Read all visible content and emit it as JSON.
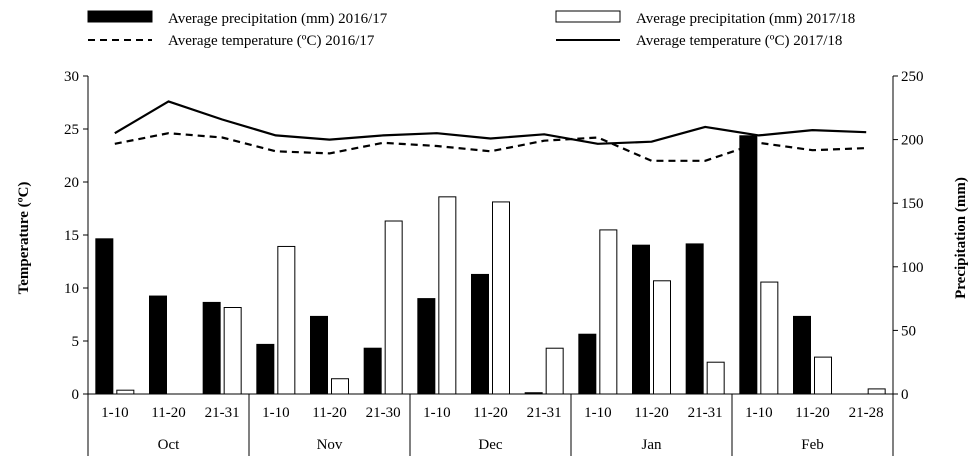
{
  "chart_data": {
    "type": "bar",
    "categories": [
      "1-10",
      "11-20",
      "21-31",
      "1-10",
      "11-20",
      "21-30",
      "1-10",
      "11-20",
      "21-31",
      "1-10",
      "11-20",
      "21-31",
      "1-10",
      "11-20",
      "21-28"
    ],
    "groups": [
      {
        "label": "Oct",
        "count": 3
      },
      {
        "label": "Nov",
        "count": 3
      },
      {
        "label": "Dec",
        "count": 3
      },
      {
        "label": "Jan",
        "count": 3
      },
      {
        "label": "Feb",
        "count": 3
      }
    ],
    "bar_series": [
      {
        "name": "Average precipitation (mm) 2016/17",
        "color": "#000000",
        "fill": "#000000",
        "values": [
          122,
          77,
          72,
          39,
          61,
          36,
          75,
          94,
          1,
          47,
          117,
          118,
          203,
          61,
          0
        ]
      },
      {
        "name": "Average precipitation (mm) 2017/18",
        "color": "#000000",
        "fill": "#ffffff",
        "values": [
          3,
          0,
          68,
          116,
          12,
          136,
          155,
          151,
          36,
          129,
          89,
          25,
          88,
          29,
          4
        ]
      }
    ],
    "line_series": [
      {
        "name": "Average temperature (ºC) 2016/17",
        "style": "dashed",
        "values": [
          23.6,
          24.6,
          24.2,
          22.9,
          22.7,
          23.7,
          23.4,
          22.9,
          23.9,
          24.2,
          22.0,
          22.0,
          23.7,
          23.0,
          23.2
        ]
      },
      {
        "name": "Average temperature (ºC) 2017/18",
        "style": "solid",
        "values": [
          24.6,
          27.6,
          25.9,
          24.4,
          24.0,
          24.4,
          24.6,
          24.1,
          24.5,
          23.6,
          23.8,
          25.2,
          24.4,
          24.9,
          24.7
        ]
      }
    ],
    "y_left": {
      "label": "Temperature (ºC)",
      "min": 0,
      "max": 30,
      "ticks": [
        0,
        5,
        10,
        15,
        20,
        25,
        30
      ]
    },
    "y_right": {
      "label": "Precipitation (mm)",
      "min": 0,
      "max": 250,
      "ticks": [
        0,
        50,
        100,
        150,
        200,
        250
      ]
    },
    "legend_position": "top",
    "grid": false
  }
}
